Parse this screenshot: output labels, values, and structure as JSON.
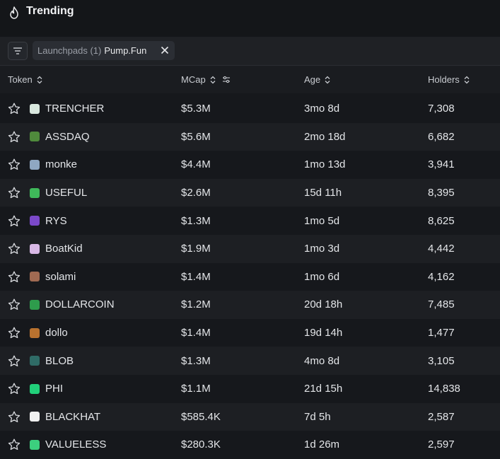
{
  "header": {
    "title": "Trending",
    "icon": "flame-icon"
  },
  "filter": {
    "chip_label": "Launchpads (1)",
    "chip_value": "Pump.Fun"
  },
  "columns": {
    "token": "Token",
    "mcap": "MCap",
    "age": "Age",
    "holders": "Holders"
  },
  "rows": [
    {
      "name": "TRENCHER",
      "mcap": "$5.3M",
      "age": "3mo 8d",
      "holders": "7,308",
      "icon_color": "#d9e8df"
    },
    {
      "name": "ASSDAQ",
      "mcap": "$5.6M",
      "age": "2mo 18d",
      "holders": "6,682",
      "icon_color": "#4f8a3c"
    },
    {
      "name": "monke",
      "mcap": "$4.4M",
      "age": "1mo 13d",
      "holders": "3,941",
      "icon_color": "#8fa7c2"
    },
    {
      "name": "USEFUL",
      "mcap": "$2.6M",
      "age": "15d 11h",
      "holders": "8,395",
      "icon_color": "#3fb95a"
    },
    {
      "name": "RYS",
      "mcap": "$1.3M",
      "age": "1mo 5d",
      "holders": "8,625",
      "icon_color": "#7b49c9"
    },
    {
      "name": "BoatKid",
      "mcap": "$1.9M",
      "age": "1mo 3d",
      "holders": "4,442",
      "icon_color": "#d8b8e6"
    },
    {
      "name": "solami",
      "mcap": "$1.4M",
      "age": "1mo 6d",
      "holders": "4,162",
      "icon_color": "#a06a52"
    },
    {
      "name": "DOLLARCOIN",
      "mcap": "$1.2M",
      "age": "20d 18h",
      "holders": "7,485",
      "icon_color": "#2e9c4c"
    },
    {
      "name": "dollo",
      "mcap": "$1.4M",
      "age": "19d 14h",
      "holders": "1,477",
      "icon_color": "#b9722f"
    },
    {
      "name": "BLOB",
      "mcap": "$1.3M",
      "age": "4mo 8d",
      "holders": "3,105",
      "icon_color": "#2f6b66"
    },
    {
      "name": "PHI",
      "mcap": "$1.1M",
      "age": "21d 15h",
      "holders": "14,838",
      "icon_color": "#21d07a"
    },
    {
      "name": "BLACKHAT",
      "mcap": "$585.4K",
      "age": "7d 5h",
      "holders": "2,587",
      "icon_color": "#f0f0f0"
    },
    {
      "name": "VALUELESS",
      "mcap": "$280.3K",
      "age": "1d 26m",
      "holders": "2,597",
      "icon_color": "#3ccf7e"
    }
  ]
}
